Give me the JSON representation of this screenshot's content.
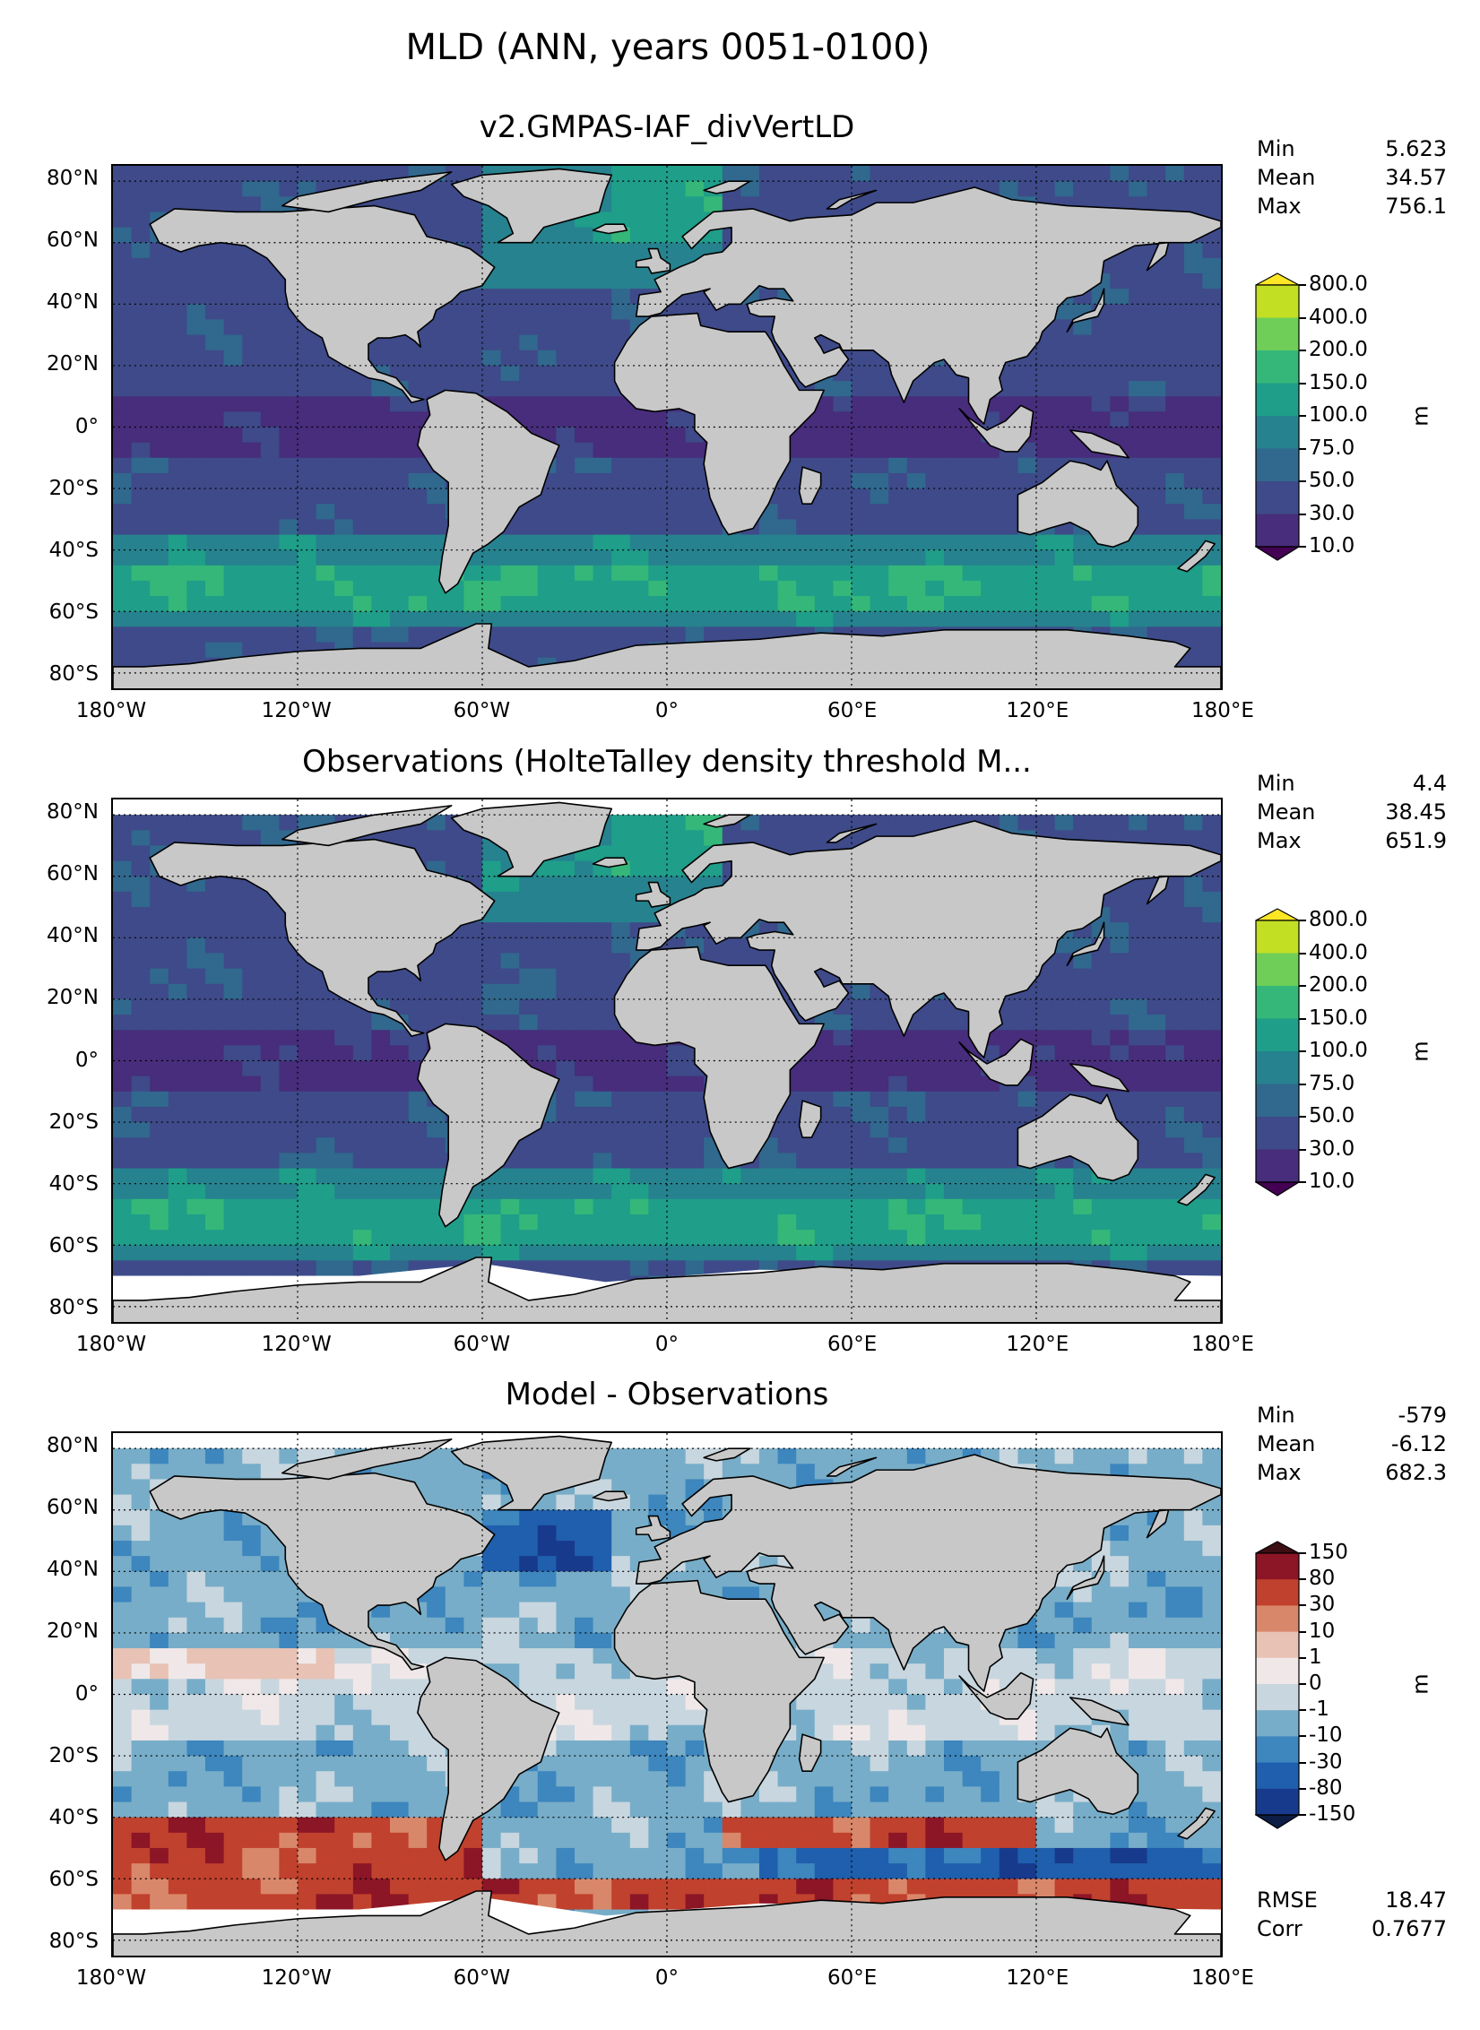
{
  "suptitle": "MLD (ANN, years 0051-0100)",
  "lat_ticks": [
    "80°N",
    "60°N",
    "40°N",
    "20°N",
    "0°",
    "20°S",
    "40°S",
    "60°S",
    "80°S"
  ],
  "lon_ticks": [
    "180°W",
    "120°W",
    "60°W",
    "0°",
    "60°E",
    "120°E",
    "180°E"
  ],
  "panels": [
    {
      "title": "v2.GMPAS-IAF_divVertLD",
      "stats": [
        {
          "label": "Min",
          "value": "5.623"
        },
        {
          "label": "Mean",
          "value": "34.57"
        },
        {
          "label": "Max",
          "value": "756.1"
        }
      ],
      "colorbar": {
        "unit": "m",
        "labels": [
          "800.0",
          "400.0",
          "200.0",
          "150.0",
          "100.0",
          "75.0",
          "50.0",
          "30.0",
          "10.0"
        ],
        "colors": [
          "#fde725",
          "#c2df23",
          "#6ece58",
          "#35b779",
          "#1f9e89",
          "#26828e",
          "#31688e",
          "#3e4a89",
          "#472d7b",
          "#440154"
        ]
      }
    },
    {
      "title": "Observations (HolteTalley density threshold M...",
      "stats": [
        {
          "label": "Min",
          "value": "4.4"
        },
        {
          "label": "Mean",
          "value": "38.45"
        },
        {
          "label": "Max",
          "value": "651.9"
        }
      ],
      "colorbar": {
        "unit": "m",
        "labels": [
          "800.0",
          "400.0",
          "200.0",
          "150.0",
          "100.0",
          "75.0",
          "50.0",
          "30.0",
          "10.0"
        ],
        "colors": [
          "#fde725",
          "#c2df23",
          "#6ece58",
          "#35b779",
          "#1f9e89",
          "#26828e",
          "#31688e",
          "#3e4a89",
          "#472d7b",
          "#440154"
        ]
      }
    },
    {
      "title": "Model - Observations",
      "stats": [
        {
          "label": "Min",
          "value": "-579"
        },
        {
          "label": "Mean",
          "value": "-6.12"
        },
        {
          "label": "Max",
          "value": "682.3"
        }
      ],
      "extra_stats": [
        {
          "label": "RMSE",
          "value": "18.47"
        },
        {
          "label": "Corr",
          "value": "0.7677"
        }
      ],
      "colorbar": {
        "unit": "m",
        "labels": [
          "150",
          "80",
          "30",
          "10",
          "1",
          "0",
          "-1",
          "-10",
          "-30",
          "-80",
          "-150"
        ],
        "colors": [
          "#3b0f13",
          "#8c1526",
          "#c0412d",
          "#d9876a",
          "#e8c2b4",
          "#f0e8e8",
          "#c8d6df",
          "#77adc8",
          "#3d86be",
          "#1f5fad",
          "#183a8d",
          "#0e1d46"
        ]
      }
    }
  ]
}
